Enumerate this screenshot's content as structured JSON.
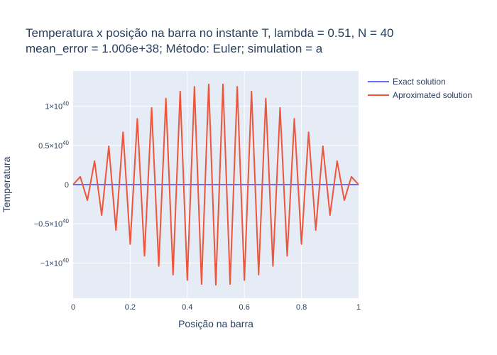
{
  "chart_data": {
    "type": "line",
    "title_line1": "Temperatura x posição na barra no instante T, lambda = 0.51, N = 40",
    "title_line2": "mean_error = 1.006e+38; Método: Euler; simulation = a",
    "xlabel": "Posição na barra",
    "ylabel": "Temperatura",
    "xlim": [
      0,
      1
    ],
    "ylim": [
      -1.45,
      1.45
    ],
    "y_scale_exponent": 40,
    "x_ticks": [
      {
        "value": 0,
        "label": "0"
      },
      {
        "value": 0.2,
        "label": "0.2"
      },
      {
        "value": 0.4,
        "label": "0.4"
      },
      {
        "value": 0.6,
        "label": "0.6"
      },
      {
        "value": 0.8,
        "label": "0.8"
      },
      {
        "value": 1,
        "label": "1"
      }
    ],
    "y_ticks": [
      {
        "value": 1,
        "label": "1×10",
        "exp": "40"
      },
      {
        "value": 0.5,
        "label": "0.5×10",
        "exp": "40"
      },
      {
        "value": 0,
        "label": "0",
        "exp": ""
      },
      {
        "value": -0.5,
        "label": "−0.5×10",
        "exp": "40"
      },
      {
        "value": -1,
        "label": "−1×10",
        "exp": "40"
      }
    ],
    "grid": true,
    "legend_position": "top-right",
    "series": [
      {
        "name": "Exact solution",
        "color": "#636efa",
        "x": [
          0,
          1
        ],
        "y": [
          0,
          0
        ]
      },
      {
        "name": "Aproximated solution",
        "color": "#ef553b",
        "x": [
          0,
          0.025,
          0.05,
          0.075,
          0.1,
          0.125,
          0.15,
          0.175,
          0.2,
          0.225,
          0.25,
          0.275,
          0.3,
          0.325,
          0.35,
          0.375,
          0.4,
          0.425,
          0.45,
          0.475,
          0.5,
          0.525,
          0.55,
          0.575,
          0.6,
          0.625,
          0.65,
          0.675,
          0.7,
          0.725,
          0.75,
          0.775,
          0.8,
          0.825,
          0.85,
          0.875,
          0.9,
          0.925,
          0.95,
          0.975,
          1
        ],
        "y": [
          0,
          0.1,
          -0.2,
          0.3,
          -0.39,
          0.49,
          -0.58,
          0.67,
          -0.76,
          0.84,
          -0.91,
          0.98,
          -1.04,
          1.1,
          -1.15,
          1.19,
          -1.22,
          1.25,
          -1.27,
          1.28,
          -1.28,
          1.28,
          -1.27,
          1.25,
          -1.22,
          1.19,
          -1.15,
          1.1,
          -1.04,
          0.98,
          -0.91,
          0.84,
          -0.76,
          0.67,
          -0.58,
          0.49,
          -0.39,
          0.3,
          -0.2,
          0.1,
          0
        ]
      }
    ]
  }
}
